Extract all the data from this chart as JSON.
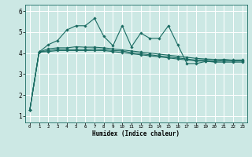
{
  "title": "",
  "xlabel": "Humidex (Indice chaleur)",
  "ylabel": "",
  "bg_color": "#cce8e4",
  "grid_color": "#ffffff",
  "line_color": "#1a6b62",
  "xlim": [
    -0.5,
    23.5
  ],
  "ylim": [
    0.7,
    6.3
  ],
  "yticks": [
    1,
    2,
    3,
    4,
    5,
    6
  ],
  "xticks": [
    0,
    1,
    2,
    3,
    4,
    5,
    6,
    7,
    8,
    9,
    10,
    11,
    12,
    13,
    14,
    15,
    16,
    17,
    18,
    19,
    20,
    21,
    22,
    23
  ],
  "series1_x": [
    0,
    1,
    2,
    3,
    4,
    5,
    6,
    7,
    8,
    9,
    10,
    11,
    12,
    13,
    14,
    15,
    16,
    17,
    18,
    19,
    20,
    21,
    22,
    23
  ],
  "series1_y": [
    1.3,
    4.05,
    4.4,
    4.6,
    5.1,
    5.3,
    5.3,
    5.65,
    4.8,
    4.35,
    5.3,
    4.3,
    4.95,
    4.7,
    4.7,
    5.3,
    4.4,
    3.5,
    3.5,
    3.6,
    3.6,
    3.7,
    3.65,
    3.65
  ],
  "series2_x": [
    0,
    1,
    2,
    3,
    4,
    5,
    6,
    7,
    8,
    9,
    10,
    11,
    12,
    13,
    14,
    15,
    16,
    17,
    18,
    19,
    20,
    21,
    22,
    23
  ],
  "series2_y": [
    1.3,
    4.05,
    4.2,
    4.25,
    4.25,
    4.3,
    4.28,
    4.28,
    4.25,
    4.2,
    4.15,
    4.1,
    4.05,
    4.0,
    3.95,
    3.9,
    3.85,
    3.8,
    3.75,
    3.72,
    3.7,
    3.68,
    3.67,
    3.67
  ],
  "series3_x": [
    0,
    1,
    2,
    3,
    4,
    5,
    6,
    7,
    8,
    9,
    10,
    11,
    12,
    13,
    14,
    15,
    16,
    17,
    18,
    19,
    20,
    21,
    22,
    23
  ],
  "series3_y": [
    1.3,
    4.05,
    4.12,
    4.17,
    4.17,
    4.17,
    4.17,
    4.2,
    4.17,
    4.12,
    4.1,
    4.02,
    3.97,
    3.92,
    3.87,
    3.82,
    3.77,
    3.72,
    3.67,
    3.67,
    3.62,
    3.62,
    3.62,
    3.62
  ],
  "series4_x": [
    0,
    1,
    2,
    3,
    4,
    5,
    6,
    7,
    8,
    9,
    10,
    11,
    12,
    13,
    14,
    15,
    16,
    17,
    18,
    19,
    20,
    21,
    22,
    23
  ],
  "series4_y": [
    1.3,
    4.05,
    4.07,
    4.12,
    4.12,
    4.12,
    4.12,
    4.12,
    4.12,
    4.07,
    4.02,
    3.97,
    3.92,
    3.87,
    3.82,
    3.77,
    3.72,
    3.67,
    3.62,
    3.62,
    3.57,
    3.57,
    3.57,
    3.57
  ],
  "markersize": 1.8,
  "linewidth": 0.8
}
